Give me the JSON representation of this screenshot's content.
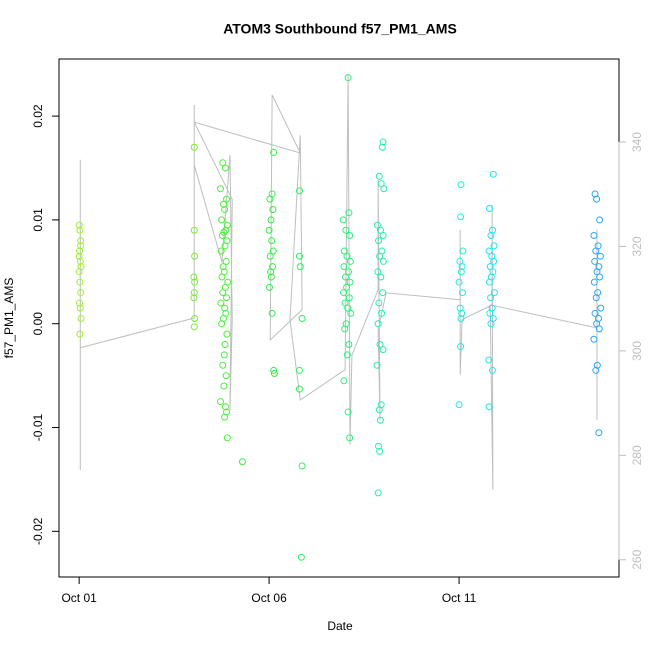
{
  "chart_data": {
    "type": "scatter",
    "title": "ATOM3 Southbound f57_PM1_AMS",
    "x_label": "Date",
    "y_label": "f57_PM1_AMS",
    "xlim": [
      0.47,
      15.21
    ],
    "ylim": [
      -0.0244,
      0.0255
    ],
    "y2lim": [
      256.7,
      355.9
    ],
    "xticks": [
      {
        "value": 1,
        "label": "Oct 01"
      },
      {
        "value": 6,
        "label": "Oct 06"
      },
      {
        "value": 11,
        "label": "Oct 11"
      }
    ],
    "yticks": [
      -0.02,
      -0.01,
      {
        "value": 0,
        "label": "0.00"
      },
      0.01,
      0.02
    ],
    "y2ticks": [
      260,
      280,
      300,
      320,
      340
    ],
    "y2_color": "#bebebe",
    "series": [
      {
        "color": "#9ef229",
        "x": [
          1.0,
          1.02,
          1.04,
          1.01,
          1.03,
          1.05,
          1.0,
          1.02,
          1.04,
          1.01,
          1.03,
          1.05,
          1.02,
          1.0,
          1.04
        ],
        "values": [
          0.0095,
          0.009,
          0.008,
          0.007,
          0.006,
          0.0055,
          0.005,
          0.004,
          0.003,
          0.002,
          0.0015,
          0.0005,
          -0.001,
          0.0065,
          0.0075
        ]
      },
      {
        "color": "#78f030",
        "x": [
          4.03,
          4.03,
          4.04,
          4.02,
          4.04,
          4.03,
          4.02,
          4.04,
          4.03
        ],
        "values": [
          0.017,
          0.009,
          0.0065,
          0.0045,
          0.004,
          0.003,
          0.0025,
          0.0005,
          -0.0003
        ]
      },
      {
        "color": "#4cf03c",
        "x": [
          4.78,
          4.85,
          4.72,
          4.88,
          4.8,
          4.83,
          4.75,
          4.9,
          4.86,
          4.81,
          4.77,
          4.89,
          4.84,
          4.74,
          4.87,
          4.79,
          4.82,
          4.76,
          4.91,
          4.85,
          4.78,
          4.88,
          4.73,
          4.83,
          4.86,
          4.8,
          4.75,
          4.89,
          4.84,
          4.82,
          4.78,
          4.87,
          4.81,
          4.72,
          4.85,
          4.88,
          4.83,
          4.9
        ],
        "values": [
          0.0155,
          0.015,
          0.013,
          0.012,
          0.0115,
          0.011,
          0.01,
          0.0095,
          0.009,
          0.0088,
          0.0085,
          0.008,
          0.0075,
          0.007,
          0.006,
          0.0055,
          0.005,
          0.0045,
          0.004,
          0.0035,
          0.003,
          0.0025,
          0.002,
          0.0015,
          0.001,
          0.0005,
          0,
          -0.001,
          -0.002,
          -0.003,
          -0.004,
          -0.005,
          -0.006,
          -0.0075,
          -0.008,
          -0.0085,
          -0.009,
          -0.011
        ]
      },
      {
        "color": "#33f046",
        "x": [
          6.12,
          6.08,
          6.02,
          6.1,
          6.05,
          6.0,
          6.07,
          6.11,
          6.03,
          6.09,
          6.04,
          6.06,
          6.01,
          6.08,
          6.12,
          6.14,
          5.3
        ],
        "values": [
          0.0165,
          0.0125,
          0.012,
          0.011,
          0.01,
          0.009,
          0.008,
          0.007,
          0.0065,
          0.0055,
          0.005,
          0.0045,
          0.0035,
          0.001,
          -0.0045,
          -0.0048,
          -0.0133
        ]
      },
      {
        "color": "#2ef05e",
        "x": [
          6.8,
          6.8,
          6.82,
          6.87,
          6.8,
          6.8,
          6.87,
          6.85
        ],
        "values": [
          0.0128,
          0.0065,
          0.0055,
          0.0005,
          -0.0045,
          -0.0063,
          -0.0137,
          -0.0225
        ]
      },
      {
        "color": "#2cf07a",
        "x": [
          8.08,
          8.1,
          7.95,
          8.02,
          8.12,
          7.98,
          8.05,
          8.14,
          7.97,
          8.09,
          8.01,
          8.13,
          8.04,
          7.96,
          8.11,
          8.0,
          8.07,
          8.15,
          8.03,
          7.99,
          8.1,
          8.06,
          7.97,
          8.08,
          8.12
        ],
        "values": [
          0.0237,
          0.0107,
          0.01,
          0.009,
          0.0085,
          0.007,
          0.0065,
          0.006,
          0.0055,
          0.005,
          0.0045,
          0.004,
          0.0035,
          0.003,
          0.0025,
          0.002,
          0.0015,
          0.001,
          0,
          -0.0005,
          -0.002,
          -0.003,
          -0.0055,
          -0.0085,
          -0.011
        ]
      },
      {
        "color": "#25f0a6",
        "x": [
          9.0,
          8.98,
          8.9,
          8.95,
          9.02,
          8.85,
          8.93,
          9.0,
          8.88,
          8.97,
          8.91,
          9.01,
          8.86,
          8.94,
          8.99,
          8.89,
          8.96,
          8.87,
          8.92,
          9.0,
          8.84,
          8.95,
          8.9,
          8.93,
          8.88,
          8.91,
          8.87
        ],
        "values": [
          0.0175,
          0.017,
          0.0142,
          0.0135,
          0.013,
          0.0095,
          0.009,
          0.0085,
          0.008,
          0.007,
          0.0065,
          0.006,
          0.005,
          0.0045,
          0.003,
          0.002,
          0.001,
          0,
          -0.002,
          -0.0025,
          -0.004,
          -0.0078,
          -0.0083,
          -0.0093,
          -0.0118,
          -0.0123,
          -0.0163
        ]
      },
      {
        "color": "#1fefe0",
        "x": [
          11.05,
          11.04,
          11.1,
          11.02,
          11.08,
          11.06,
          11.0,
          11.09,
          11.03,
          11.07,
          11.05,
          11.04,
          11.0
        ],
        "values": [
          0.0134,
          0.0103,
          0.007,
          0.006,
          0.0055,
          0.005,
          0.004,
          0.003,
          0.0015,
          0.001,
          0.0005,
          -0.0022,
          -0.0078
        ]
      },
      {
        "color": "#1fe6ee",
        "x": [
          11.9,
          11.8,
          11.88,
          11.84,
          11.92,
          11.79,
          11.86,
          11.91,
          11.82,
          11.89,
          11.85,
          11.8,
          11.93,
          11.83,
          11.87,
          11.81,
          11.9,
          11.84,
          11.78,
          11.88,
          11.79
        ],
        "values": [
          0.0144,
          0.0111,
          0.009,
          0.0085,
          0.0075,
          0.007,
          0.0065,
          0.006,
          0.0055,
          0.005,
          0.0045,
          0.004,
          0.003,
          0.0025,
          0.0015,
          0.001,
          0.0005,
          0,
          -0.0035,
          -0.0045,
          -0.008
        ]
      },
      {
        "color": "#2aa8ef",
        "x": [
          14.58,
          14.62,
          14.7,
          14.55,
          14.66,
          14.6,
          14.72,
          14.57,
          14.68,
          14.63,
          14.7,
          14.56,
          14.65,
          14.61,
          14.73,
          14.58,
          14.67,
          14.62,
          14.69,
          14.55,
          14.64,
          14.6,
          14.68
        ],
        "values": [
          0.0125,
          0.012,
          0.01,
          0.0085,
          0.0075,
          0.007,
          0.0065,
          0.006,
          0.0055,
          0.005,
          0.0045,
          0.004,
          0.003,
          0.0025,
          0.0015,
          0.001,
          0.0005,
          0,
          -0.0005,
          -0.0015,
          -0.004,
          -0.0045,
          -0.0105
        ]
      },
      {
        "color": "#bebebe",
        "mode": "line",
        "axis": "y2",
        "x": [
          1.03,
          1.03,
          1.03,
          1.03,
          4.03,
          4.03,
          4.03,
          4.76,
          4.97,
          5.03,
          4.97,
          5.03,
          4.03,
          6.82,
          6.08,
          6.03,
          6.87,
          6.82,
          6.55,
          6.82,
          8.0,
          8.08,
          8.13,
          8.18,
          8.87,
          8.87,
          8.92,
          8.87,
          9.08,
          11.03,
          11.03,
          11.03,
          11.08,
          11.87,
          11.87,
          11.89,
          11.82,
          14.63,
          14.63,
          14.63,
          14.63
        ],
        "values": [
          336.6,
          277.2,
          317.4,
          300.6,
          306.3,
          347.1,
          335.6,
          317,
          337.5,
          306,
          288.7,
          329,
          343.8,
          337.9,
          349,
          302.1,
          307.9,
          341.3,
          306,
          290.6,
          296.4,
          352.8,
          282,
          299.2,
          311.7,
          332.7,
          286.8,
          304,
          311.1,
          309.8,
          323.2,
          295.4,
          306,
          308.8,
          327.9,
          273.4,
          308.8,
          304.4,
          323.2,
          286.8,
          307.9
        ]
      }
    ]
  }
}
